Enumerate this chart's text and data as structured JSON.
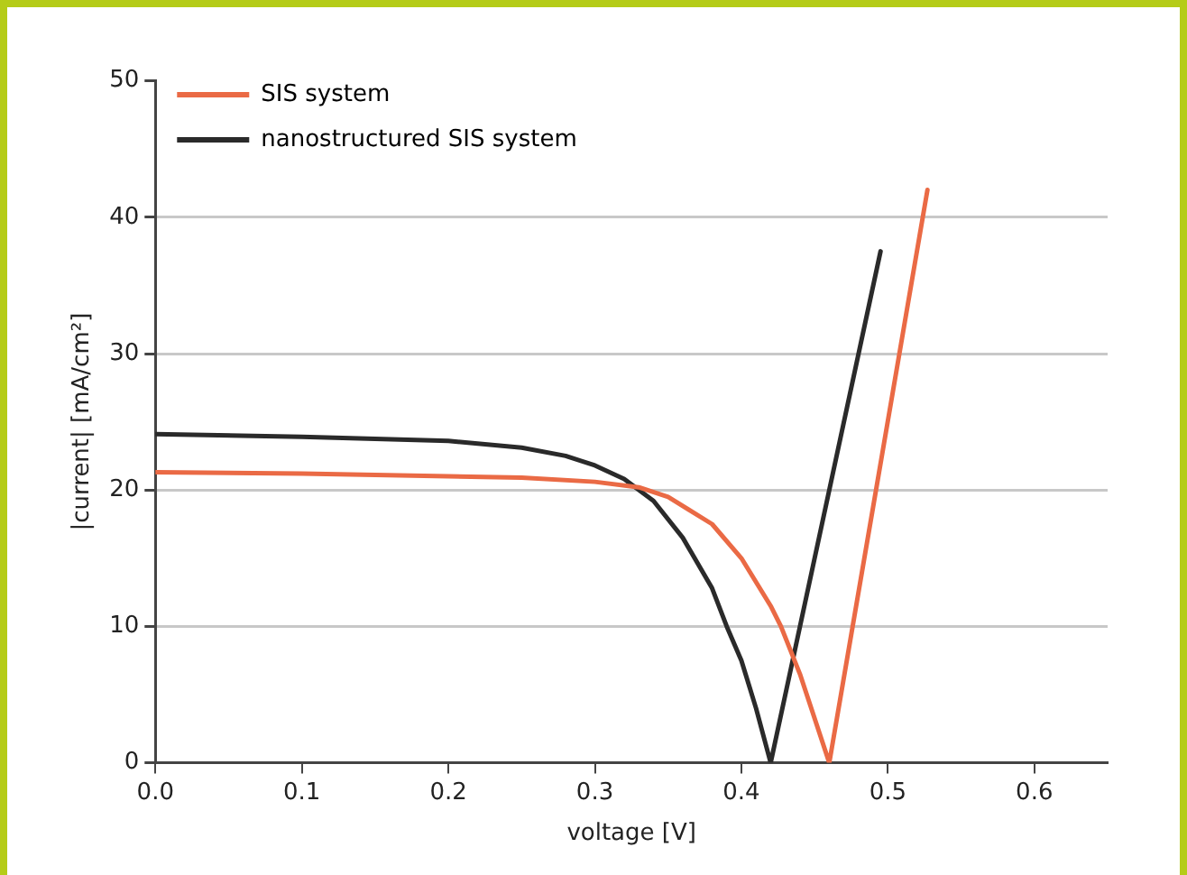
{
  "chart_data": {
    "type": "line",
    "xlabel": "voltage [V]",
    "ylabel": "|current| [mA/cm²]",
    "xlim": [
      0,
      0.65
    ],
    "xticks": [
      {
        "value": 0,
        "label": "0.0"
      },
      {
        "value": 0.1,
        "label": "0.1"
      },
      {
        "value": 0.2,
        "label": "0.2"
      },
      {
        "value": 0.3,
        "label": "0.3"
      },
      {
        "value": 0.4,
        "label": "0.4"
      },
      {
        "value": 0.5,
        "label": "0.5"
      },
      {
        "value": 0.6,
        "label": "0.6"
      }
    ],
    "ylim": [
      0,
      50
    ],
    "yticks": [
      0,
      10,
      20,
      30,
      40,
      50
    ],
    "grid": "y",
    "legend": "top left",
    "marker": "none",
    "line_style": "solid",
    "series": [
      {
        "name": "SIS system",
        "color": "#ea6a45",
        "x": [
          0,
          0.1,
          0.2,
          0.25,
          0.3,
          0.33,
          0.35,
          0.38,
          0.4,
          0.42,
          0.427,
          0.44,
          0.46,
          0.527
        ],
        "values": [
          21.3,
          21.2,
          21.0,
          20.9,
          20.6,
          20.2,
          19.5,
          17.5,
          15,
          11.5,
          10,
          6.5,
          0,
          42
        ]
      },
      {
        "name": "nanostructured SIS system",
        "color": "#2a2a2a",
        "x": [
          0,
          0.1,
          0.2,
          0.25,
          0.28,
          0.3,
          0.32,
          0.34,
          0.36,
          0.38,
          0.39,
          0.4,
          0.41,
          0.42,
          0.495
        ],
        "values": [
          24.1,
          23.9,
          23.6,
          23.1,
          22.5,
          21.8,
          20.8,
          19.2,
          16.5,
          12.8,
          10,
          7.5,
          4,
          0,
          37.5
        ]
      }
    ]
  }
}
